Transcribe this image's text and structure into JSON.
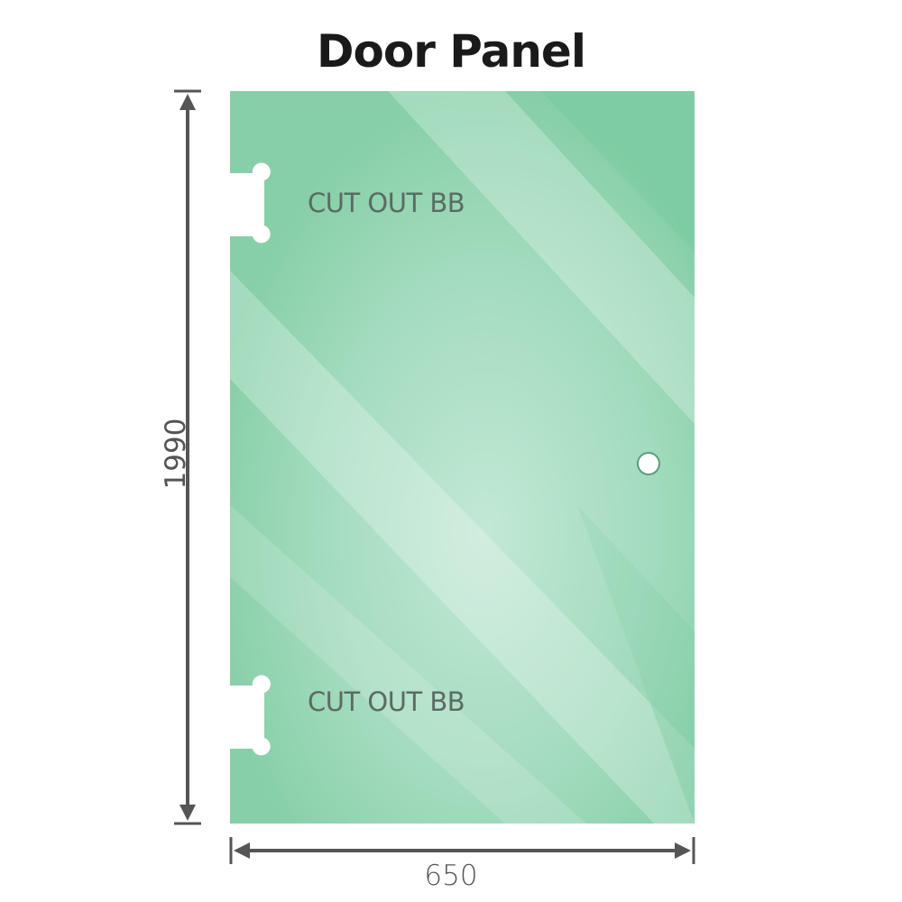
{
  "title": "Door Panel",
  "labels": {
    "cutout_top": "CUT OUT BB",
    "cutout_bottom": "CUT OUT BB"
  },
  "dimensions": {
    "height": "1990",
    "width": "650"
  },
  "colors": {
    "glass": "#86cfa8",
    "glass_light": "#bfe6d2",
    "dimension_line": "#555555"
  }
}
